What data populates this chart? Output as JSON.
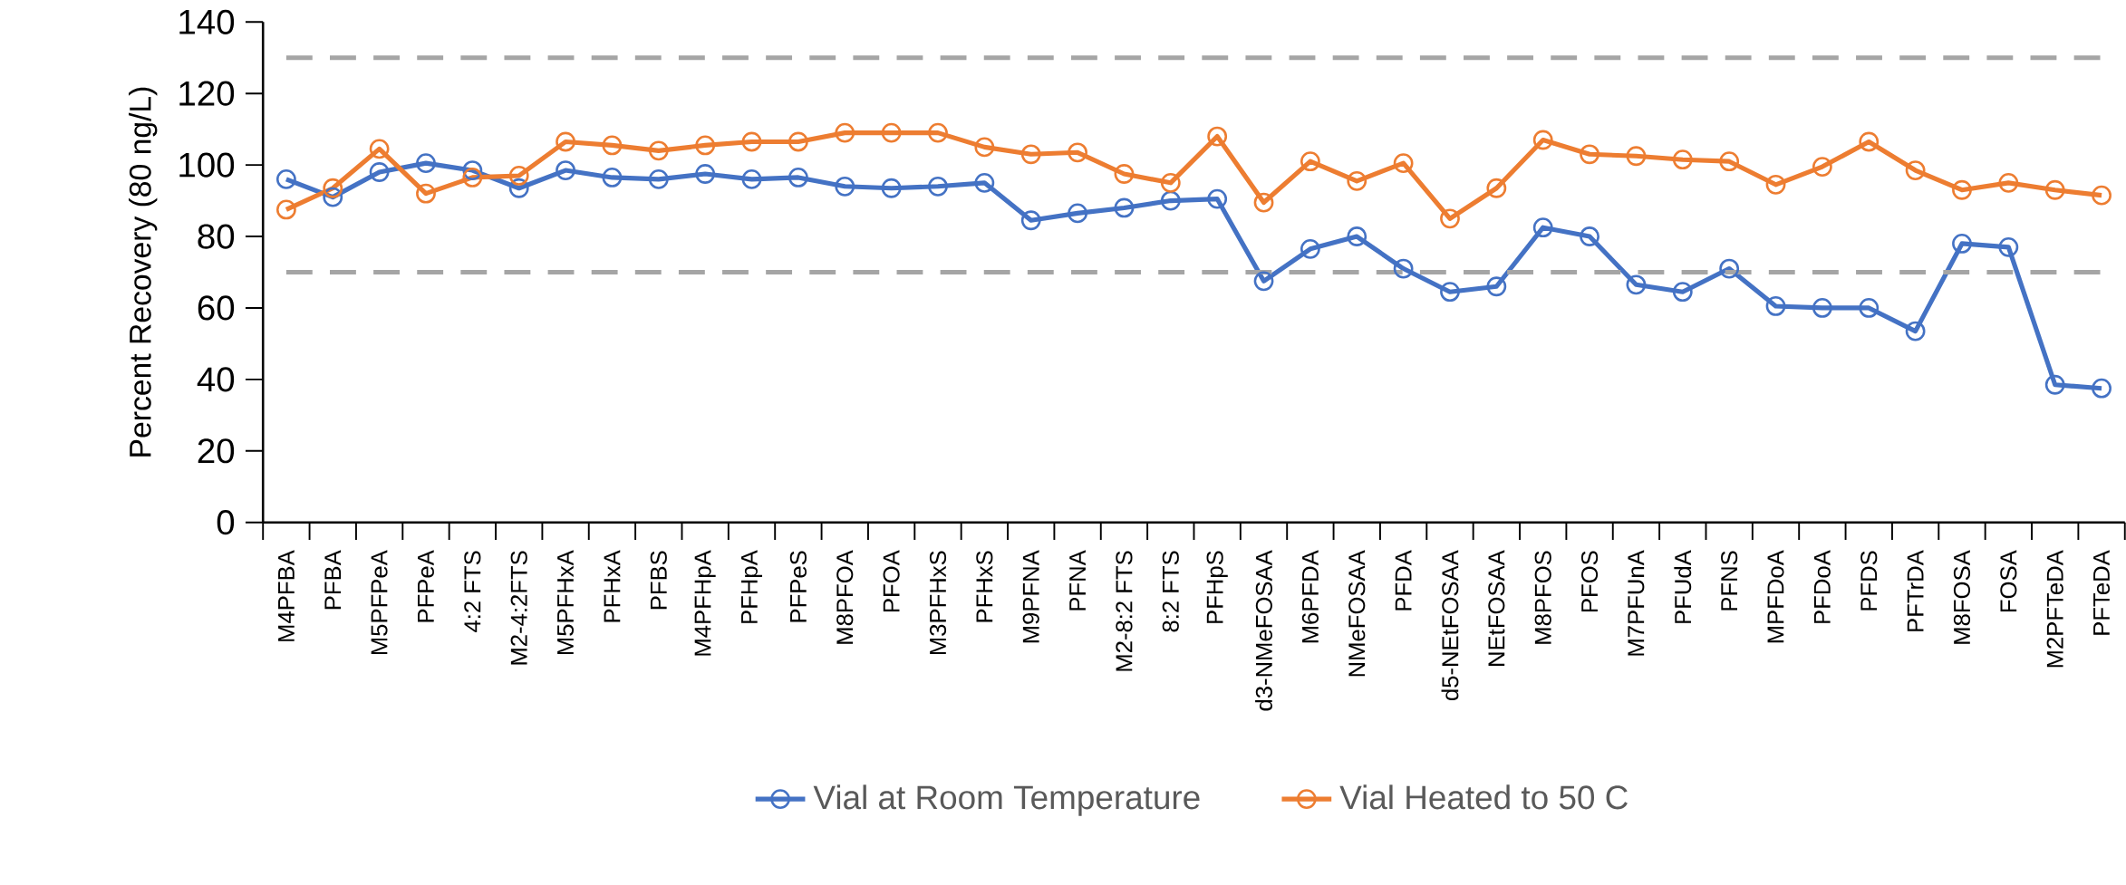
{
  "chart_data": {
    "type": "line",
    "ylabel": "Percent Recovery (80 ng/L)",
    "categories": [
      "M4PFBA",
      "PFBA",
      "M5PFPeA",
      "PFPeA",
      "4:2 FTS",
      "M2-4:2FTS",
      "M5PFHxA",
      "PFHxA",
      "PFBS",
      "M4PFHpA",
      "PFHpA",
      "PFPeS",
      "M8PFOA",
      "PFOA",
      "M3PFHxS",
      "PFHxS",
      "M9PFNA",
      "PFNA",
      "M2-8:2 FTS",
      "8:2 FTS",
      "PFHpS",
      "d3-NMeFOSAA",
      "M6PFDA",
      "NMeFOSAA",
      "PFDA",
      "d5-NEtFOSAA",
      "NEtFOSAA",
      "M8PFOS",
      "PFOS",
      "M7PFUnA",
      "PFUdA",
      "PFNS",
      "MPFDoA",
      "PFDoA",
      "PFDS",
      "PFTrDA",
      "M8FOSA",
      "FOSA",
      "M2PFTeDA",
      "PFTeDA"
    ],
    "series": [
      {
        "name": "Vial at Room Temperature",
        "color": "#4472c4",
        "values": [
          96,
          91,
          98,
          100.5,
          98.5,
          93.5,
          98.5,
          96.5,
          96,
          97.5,
          96,
          96.5,
          94,
          93.5,
          94,
          95,
          84.5,
          86.5,
          88,
          90,
          90.5,
          67.5,
          76.5,
          80,
          71,
          64.5,
          66,
          82.5,
          80,
          66.5,
          64.5,
          71,
          60.5,
          60,
          60,
          53.5,
          78,
          77,
          38.5,
          37.5
        ]
      },
      {
        "name": "Vial Heated to 50 C",
        "color": "#ed7d31",
        "values": [
          87.5,
          93.5,
          104.5,
          92,
          96.5,
          97,
          106.5,
          105.5,
          104,
          105.5,
          106.5,
          106.5,
          109,
          109,
          109,
          105,
          103,
          103.5,
          97.5,
          95,
          108,
          89.5,
          101,
          95.5,
          100.5,
          85,
          93.5,
          107,
          103,
          102.5,
          101.5,
          101,
          94.5,
          99.5,
          106.5,
          98.5,
          93,
          95,
          93,
          91.5
        ]
      }
    ],
    "ylim": [
      0,
      140
    ],
    "yticks": [
      0,
      20,
      40,
      60,
      80,
      100,
      120,
      140
    ],
    "ref_lines": [
      {
        "axis": "y",
        "value": 130,
        "color": "#a5a5a5",
        "line_style": "dashed"
      },
      {
        "axis": "y",
        "value": 70,
        "color": "#a5a5a5",
        "line_style": "dashed"
      }
    ],
    "grid": false,
    "legend": "bottom",
    "marker": "circle",
    "line_style": "solid"
  }
}
